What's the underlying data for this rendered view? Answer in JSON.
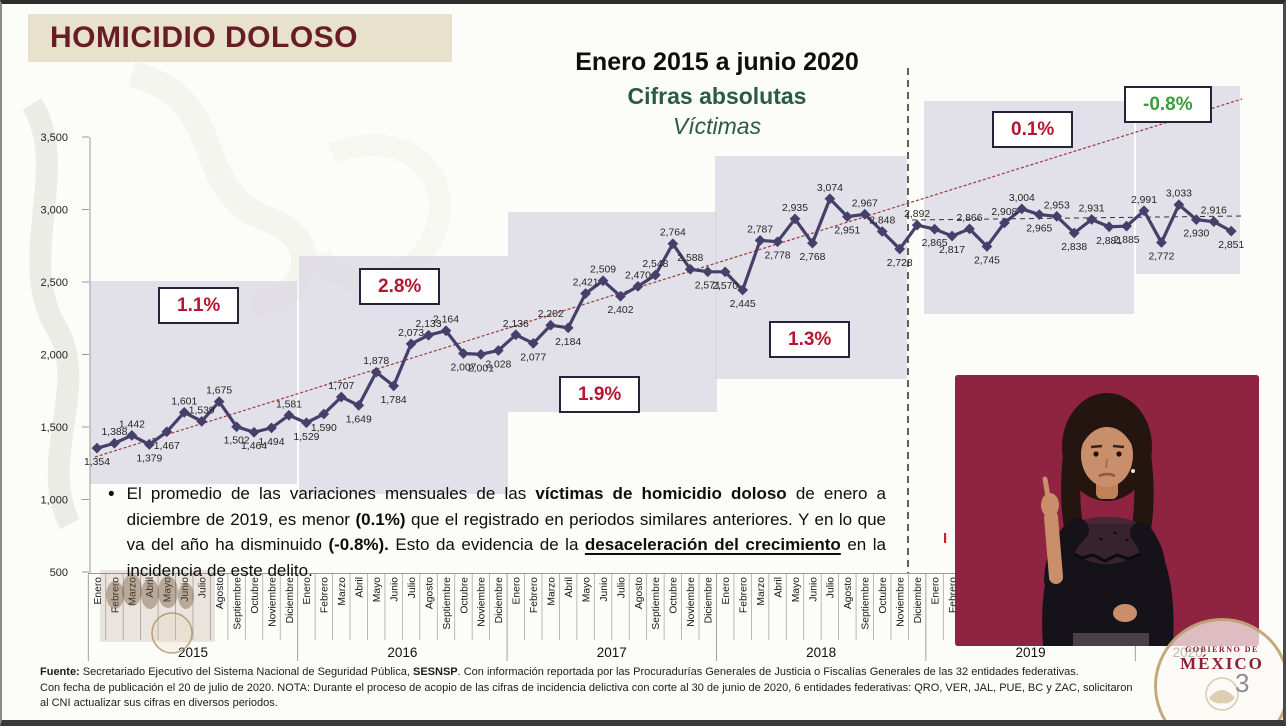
{
  "header": {
    "title": "HOMICIDIO DOLOSO"
  },
  "page_number": "3",
  "seal": {
    "line1": "GOBIERNO DE",
    "line2": "MÉXICO"
  },
  "bullet": {
    "marker": "•",
    "s1": "El promedio de las variaciones mensuales de las ",
    "s2": "víctimas de homicidio doloso",
    "s3": " de enero a diciembre de 2019, es menor ",
    "s4": "(0.1%)",
    "s5": " que el registrado en periodos similares anteriores. Y en lo que va del año ha disminuido ",
    "s6": "(-0.8%).",
    "s7": " Esto da evidencia de la ",
    "s8": "desaceleración del crecimiento",
    "s9": " en la incidencia de este delito."
  },
  "footer": {
    "l1_bold": "Fuente:",
    "l1a": " Secretariado Ejecutivo del Sistema Nacional de Seguridad Pública, ",
    "l1_bold2": "SESNSP",
    "l1b": ". Con información reportada por las Procuradurías Generales de Justicia o Fiscalías Generales de las 32 entidades federativas.",
    "l2": "Con fecha de publicación el 20 de julio de 2020. NOTA: Durante el proceso de acopio de las cifras de incidencia delictiva con corte al 30 de junio de 2020, 6  entidades federativas: QRO, VER, JAL, PUE, BC y ZAC, solicitaron",
    "l3": "al CNI actualizar sus cifras en diversos periodos."
  },
  "chart_data": {
    "type": "line",
    "title": "Enero 2015 a junio 2020",
    "subtitle": "Cifras absolutas",
    "series_label": "Víctimas",
    "ylim": [
      500,
      3500
    ],
    "ytick_labels": [
      "3,500",
      "3,000",
      "2,500",
      "2,000",
      "1,500",
      "1,000",
      "500"
    ],
    "month_names": [
      "Enero",
      "Febrero",
      "Marzo",
      "Abril",
      "Mayo",
      "Junio",
      "Julio",
      "Agosto",
      "Septiembre",
      "Octubre",
      "Noviembre",
      "Diciembre"
    ],
    "years": [
      "2015",
      "2016",
      "2017",
      "2018",
      "2019",
      "2020"
    ],
    "months_per_year": [
      12,
      12,
      12,
      12,
      12,
      6
    ],
    "values": [
      1354,
      1388,
      1442,
      1379,
      1467,
      1601,
      1539,
      1675,
      1502,
      1464,
      1494,
      1581,
      1529,
      1590,
      1707,
      1649,
      1878,
      1784,
      2073,
      2133,
      2164,
      2007,
      2001,
      2028,
      2136,
      2077,
      2202,
      2184,
      2421,
      2509,
      2402,
      2470,
      2548,
      2764,
      2588,
      2571,
      2570,
      2445,
      2787,
      2778,
      2935,
      2768,
      3074,
      2951,
      2967,
      2848,
      2728,
      2892,
      2865,
      2817,
      2866,
      2745,
      2908,
      3004,
      2965,
      2953,
      2838,
      2931,
      2881,
      2885,
      2991,
      2772,
      3033,
      2930,
      2916,
      2851
    ],
    "label_side": [
      "b",
      "a",
      "a",
      "b",
      "b",
      "a",
      "a",
      "a",
      "b",
      "b",
      "b",
      "a",
      "b",
      "b",
      "a",
      "b",
      "a",
      "b",
      "a",
      "a",
      "a",
      "b",
      "b",
      "b",
      "a",
      "b",
      "a",
      "b",
      "a",
      "a",
      "b",
      "a",
      "a",
      "a",
      "a",
      "b",
      "b",
      "b",
      "a",
      "b",
      "a",
      "b",
      "a",
      "b",
      "a",
      "a",
      "b",
      "a",
      "b",
      "b",
      "a",
      "b",
      "a",
      "a",
      "b",
      "a",
      "b",
      "a",
      "b",
      "b",
      "a",
      "b",
      "a",
      "b",
      "a",
      "b"
    ],
    "series_color": "#45406a",
    "annotations": [
      {
        "year": "2015",
        "label": "1.1%",
        "color": "#b5152f"
      },
      {
        "year": "2016",
        "label": "2.8%",
        "color": "#b5152f"
      },
      {
        "year": "2017",
        "label": "1.9%",
        "color": "#b5152f"
      },
      {
        "year": "2018",
        "label": "1.3%",
        "color": "#b5152f"
      },
      {
        "year": "2019",
        "label": "0.1%",
        "color": "#b5152f"
      },
      {
        "year": "2020",
        "label": "-0.8%",
        "color": "#3a9e3d"
      }
    ],
    "clipped_annotation": "I",
    "trend_line": "ascending linear trend (thin red dashed)",
    "reference_lines": {
      "vertical_dashed": "entre noviembre y diciembre 2018",
      "horizontal_dashed": "promedio 2019-2020 (~2,900)"
    },
    "legend_position": "none",
    "grid": "off"
  }
}
